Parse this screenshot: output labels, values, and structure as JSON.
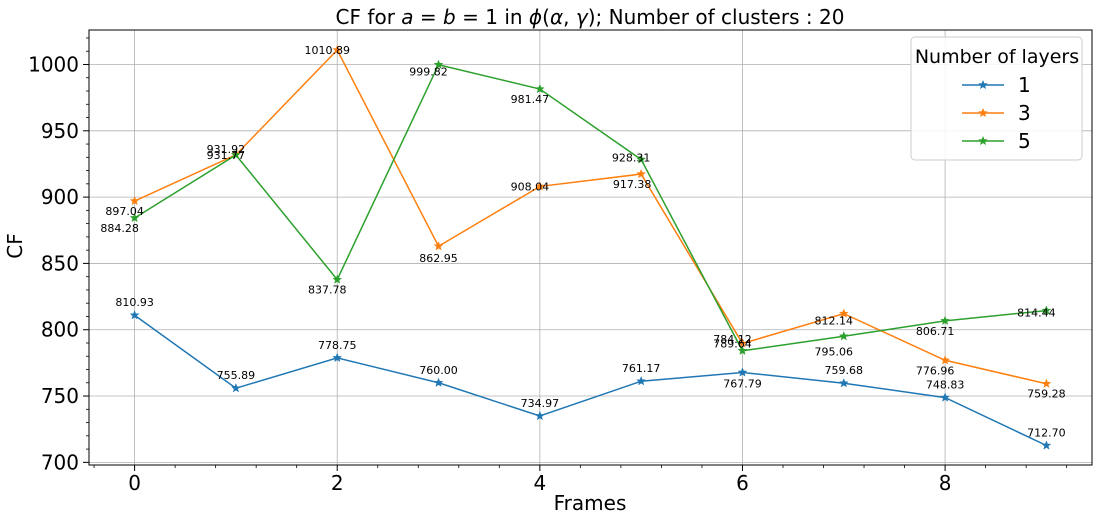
{
  "chart_data": {
    "type": "line",
    "title": "CF for a = b = 1 in ϕ(α, γ); Number of clusters : 20",
    "xlabel": "Frames",
    "ylabel": "CF",
    "xlim": [
      -0.45,
      9.45
    ],
    "ylim": [
      698,
      1026
    ],
    "xticks": [
      0,
      2,
      4,
      6,
      8
    ],
    "yticks": [
      700,
      750,
      800,
      850,
      900,
      950,
      1000
    ],
    "grid": true,
    "legend": {
      "title": "Number of layers",
      "position": "top-right"
    },
    "x": [
      0,
      1,
      2,
      3,
      4,
      5,
      6,
      7,
      8,
      9
    ],
    "series": [
      {
        "name": "1",
        "color": "#1f77b4",
        "marker": "star",
        "values": [
          810.93,
          755.89,
          778.75,
          760.0,
          734.97,
          761.17,
          767.79,
          759.68,
          748.83,
          712.7
        ],
        "labels": [
          "810.93",
          "755.89",
          "778.75",
          "760.00",
          "734.97",
          "761.17",
          "767.79",
          "759.68",
          "748.83",
          "712.70"
        ]
      },
      {
        "name": "3",
        "color": "#ff7f0e",
        "marker": "star",
        "values": [
          897.04,
          931.92,
          1010.89,
          862.95,
          908.04,
          917.38,
          789.64,
          812.14,
          776.96,
          759.28
        ],
        "labels": [
          "897.04",
          "931.92",
          "1010.89",
          "862.95",
          "908.04",
          "917.38",
          "789.64",
          "812.14",
          "776.96",
          "759.28"
        ]
      },
      {
        "name": "5",
        "color": "#2ca02c",
        "marker": "star",
        "values": [
          884.28,
          931.77,
          837.78,
          999.82,
          981.47,
          928.31,
          784.12,
          795.06,
          806.71,
          814.44
        ],
        "labels": [
          "884.28",
          "931.77",
          "837.78",
          "999.82",
          "981.47",
          "928.31",
          "784.12",
          "795.06",
          "806.71",
          "814.44"
        ]
      }
    ]
  }
}
